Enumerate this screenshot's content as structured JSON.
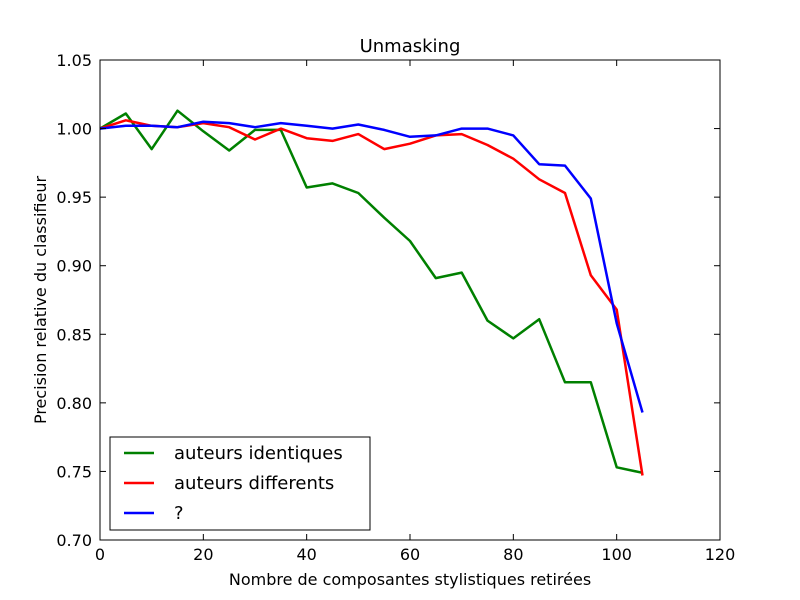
{
  "chart_data": {
    "type": "line",
    "title": "Unmasking",
    "xlabel": "Nombre de composantes stylistiques retirées",
    "ylabel": "Precision relative du classifieur",
    "xlim": [
      0,
      120
    ],
    "ylim": [
      0.7,
      1.05
    ],
    "xticks": [
      0,
      20,
      40,
      60,
      80,
      100,
      120
    ],
    "yticks": [
      0.7,
      0.75,
      0.8,
      0.85,
      0.9,
      0.95,
      1.0,
      1.05
    ],
    "xtick_labels": [
      "0",
      "20",
      "40",
      "60",
      "80",
      "100",
      "120"
    ],
    "ytick_labels": [
      "0.70",
      "0.75",
      "0.80",
      "0.85",
      "0.90",
      "0.95",
      "1.00",
      "1.05"
    ],
    "grid": false,
    "legend_position": "bottom-left",
    "series": [
      {
        "name": "auteurs identiques",
        "color": "#008000",
        "x": [
          0,
          5,
          10,
          15,
          20,
          25,
          30,
          35,
          40,
          45,
          50,
          55,
          60,
          65,
          70,
          75,
          80,
          85,
          90,
          95,
          100,
          105
        ],
        "y": [
          1.0,
          1.011,
          0.985,
          1.013,
          0.998,
          0.984,
          0.999,
          0.999,
          0.957,
          0.96,
          0.953,
          0.935,
          0.918,
          0.891,
          0.895,
          0.86,
          0.847,
          0.861,
          0.815,
          0.815,
          0.753,
          0.749
        ]
      },
      {
        "name": "auteurs differents",
        "color": "#ff0000",
        "x": [
          0,
          5,
          10,
          15,
          20,
          25,
          30,
          35,
          40,
          45,
          50,
          55,
          60,
          65,
          70,
          75,
          80,
          85,
          90,
          95,
          100,
          105
        ],
        "y": [
          1.0,
          1.006,
          1.002,
          1.001,
          1.004,
          1.001,
          0.992,
          1.0,
          0.993,
          0.991,
          0.996,
          0.985,
          0.989,
          0.995,
          0.996,
          0.988,
          0.978,
          0.963,
          0.953,
          0.893,
          0.868,
          0.747
        ]
      },
      {
        "name": "?",
        "color": "#0000ff",
        "x": [
          0,
          5,
          10,
          15,
          20,
          25,
          30,
          35,
          40,
          45,
          50,
          55,
          60,
          65,
          70,
          75,
          80,
          85,
          90,
          95,
          100,
          105
        ],
        "y": [
          1.0,
          1.002,
          1.002,
          1.001,
          1.005,
          1.004,
          1.001,
          1.004,
          1.002,
          1.0,
          1.003,
          0.999,
          0.994,
          0.995,
          1.0,
          1.0,
          0.995,
          0.974,
          0.973,
          0.949,
          0.858,
          0.793
        ]
      }
    ]
  }
}
